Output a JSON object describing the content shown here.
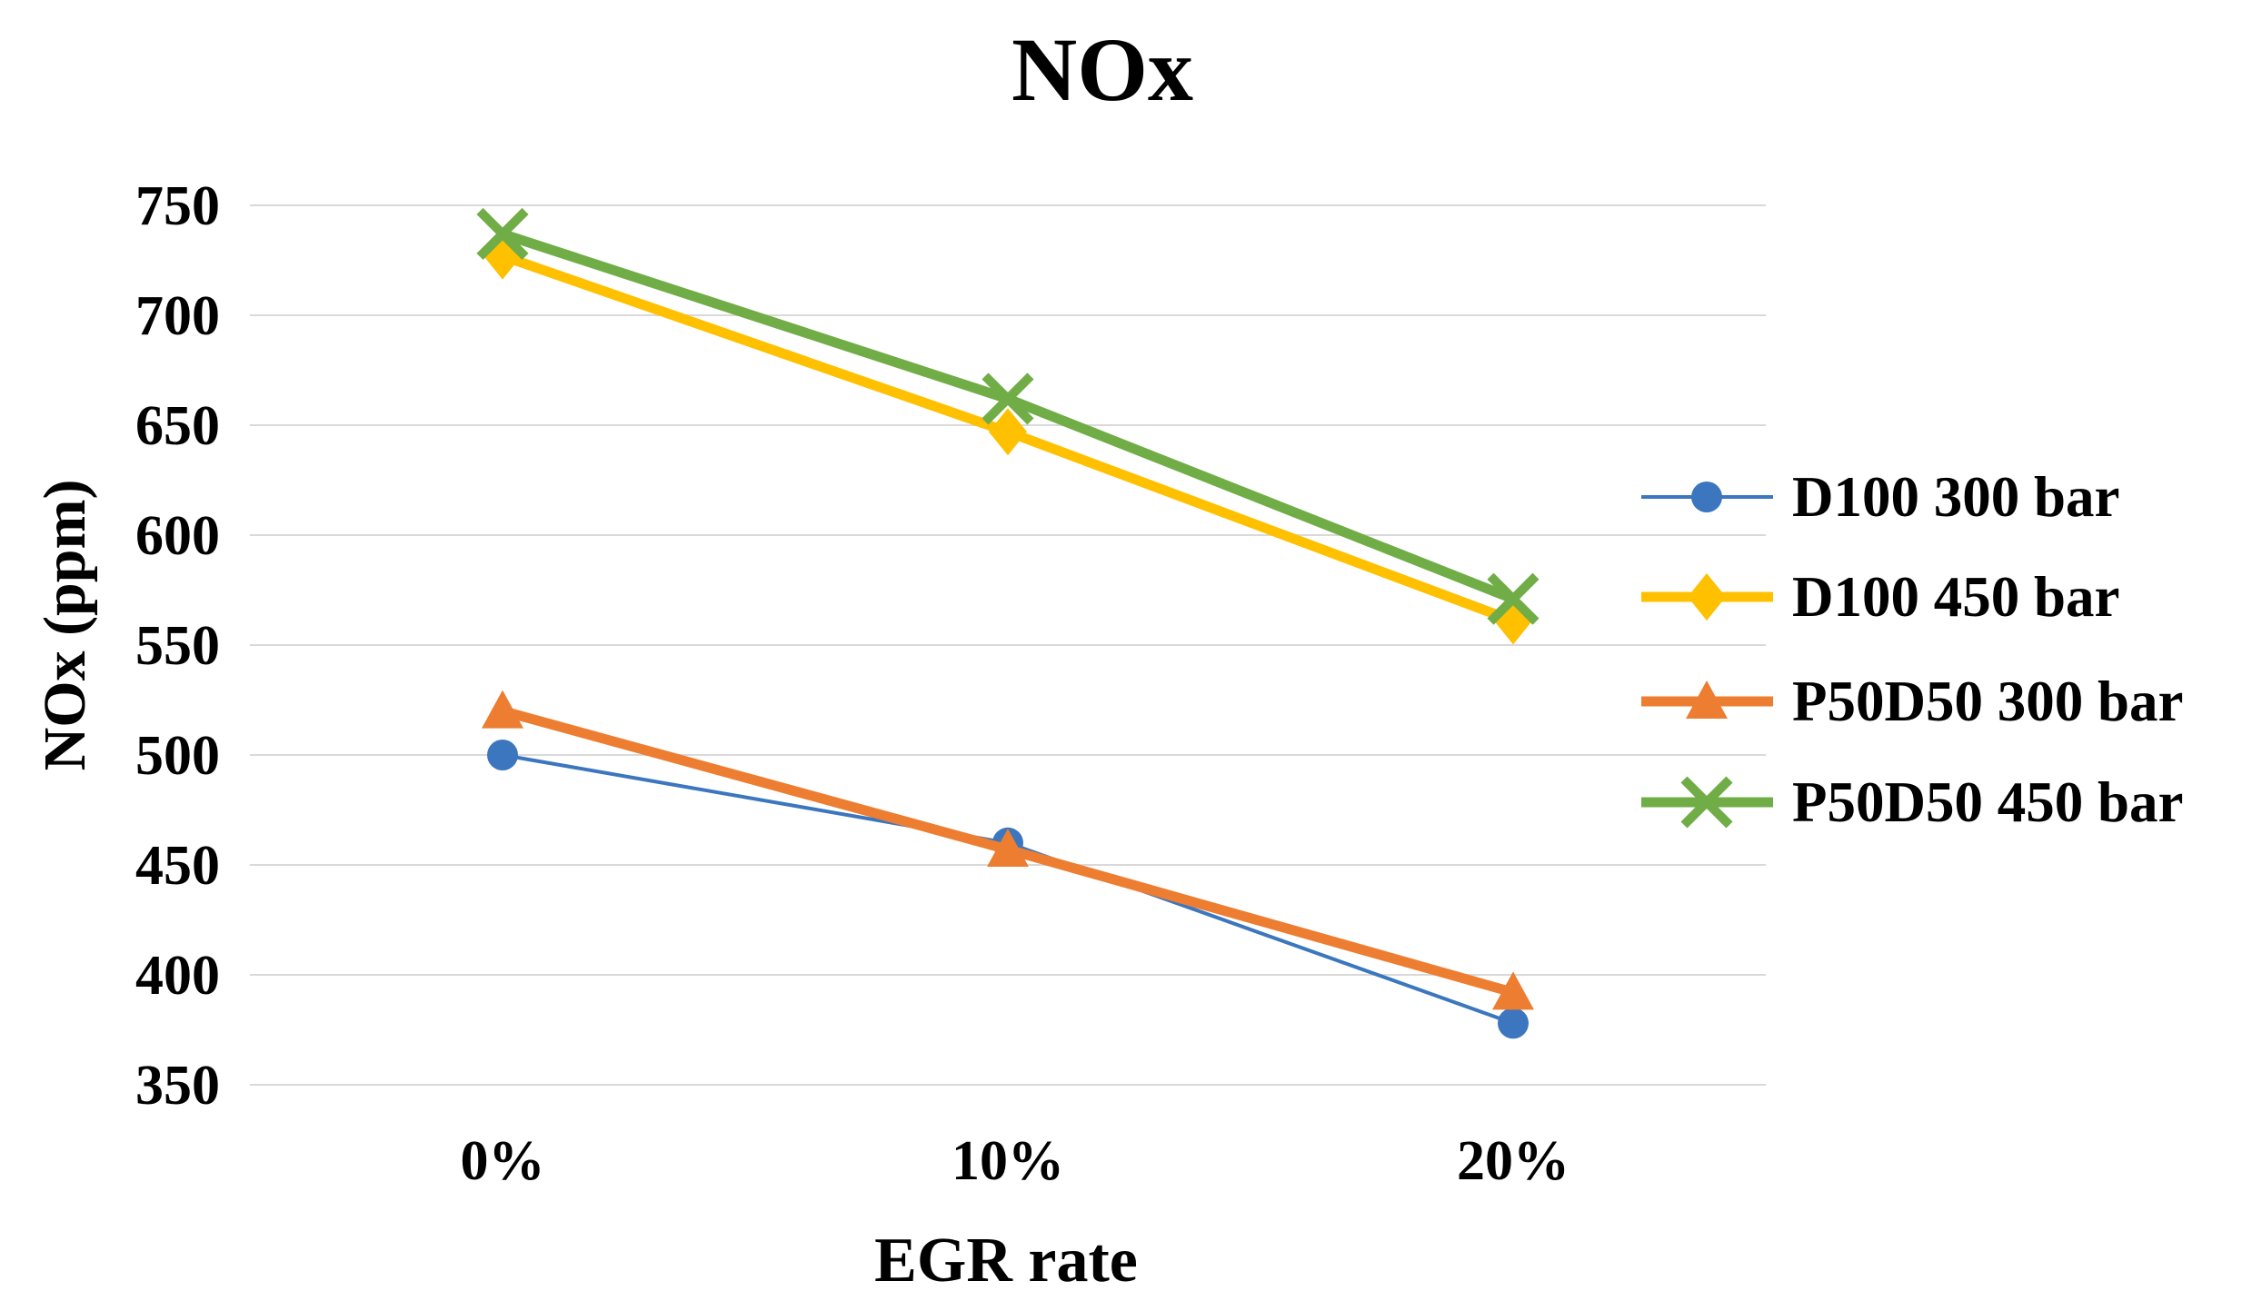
{
  "chart_data": {
    "type": "line",
    "title": "NOx",
    "xlabel": "EGR rate",
    "ylabel": "NOx (ppm)",
    "categories": [
      "0%",
      "10%",
      "20%"
    ],
    "series": [
      {
        "name": "D100 300 bar",
        "values": [
          500,
          460,
          378
        ],
        "color": "#3B76BE",
        "marker": "circle",
        "line_width": 4
      },
      {
        "name": "D100 450 bar",
        "values": [
          727,
          647,
          561
        ],
        "color": "#FFC000",
        "marker": "diamond",
        "line_width": 11
      },
      {
        "name": "P50D50 300 bar",
        "values": [
          520,
          457,
          392
        ],
        "color": "#ED7D31",
        "marker": "triangle",
        "line_width": 11
      },
      {
        "name": "P50D50 450 bar",
        "values": [
          737,
          662,
          571
        ],
        "color": "#70AD47",
        "marker": "x",
        "line_width": 11
      }
    ],
    "ylim": [
      350,
      750
    ],
    "ytick_step": 50,
    "grid": true,
    "gridline_color": "#D9D9D9",
    "legend_position": "right"
  }
}
